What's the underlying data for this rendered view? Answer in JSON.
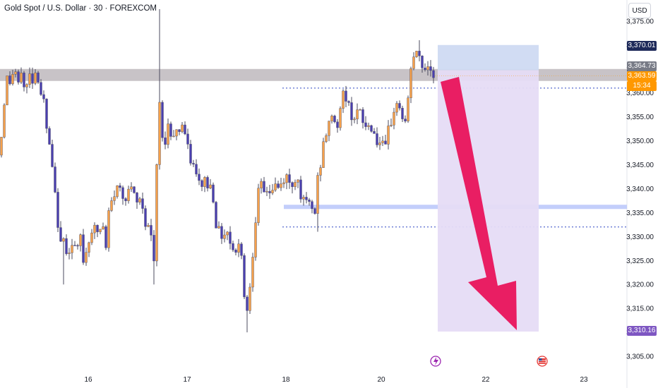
{
  "header": {
    "symbol_title": "Gold Spot / U.S. Dollar · 30 · FOREXCOM",
    "currency": "USD"
  },
  "chart_data": {
    "type": "candlestick",
    "title": "Gold Spot / U.S. Dollar · 30 · FOREXCOM",
    "ylim": [
      3303,
      3378
    ],
    "y_ticks": [
      "3,305.00",
      "3,310.00",
      "3,315.00",
      "3,320.00",
      "3,325.00",
      "3,330.00",
      "3,335.00",
      "3,340.00",
      "3,345.00",
      "3,350.00",
      "3,355.00",
      "3,360.00",
      "3,365.00",
      "3,370.00",
      "3,375.00"
    ],
    "x_ticks": [
      "16",
      "17",
      "18",
      "20",
      "22",
      "23"
    ],
    "price_labels": {
      "target_high": "3,370.01",
      "resistance": "3,364.73",
      "last_price": "3,363.59",
      "countdown": "15:34",
      "target_low": "3,310.16"
    },
    "levels": {
      "resistance_zone": [
        3362.5,
        3365.0
      ],
      "support_line": 3336.2,
      "dotted_upper": 3361.0,
      "dotted_lower": 3332.0
    },
    "short_position": {
      "entry": 3364.73,
      "stop": 3370.01,
      "target": 3310.16
    },
    "candle_anchors": [
      [
        0,
        3347
      ],
      [
        5,
        3357
      ],
      [
        10,
        3363
      ],
      [
        16,
        3362
      ],
      [
        20,
        3366
      ],
      [
        26,
        3361
      ],
      [
        30,
        3365
      ],
      [
        36,
        3359
      ],
      [
        40,
        3364
      ],
      [
        46,
        3363
      ],
      [
        52,
        3365
      ],
      [
        58,
        3360
      ],
      [
        62,
        3358
      ],
      [
        66,
        3352
      ],
      [
        70,
        3349
      ],
      [
        76,
        3341
      ],
      [
        82,
        3333
      ],
      [
        86,
        3328
      ],
      [
        90,
        3329
      ],
      [
        96,
        3327
      ],
      [
        100,
        3328
      ],
      [
        104,
        3328
      ],
      [
        110,
        3327
      ],
      [
        114,
        3330
      ],
      [
        118,
        3325
      ],
      [
        124,
        3328
      ],
      [
        128,
        3331
      ],
      [
        132,
        3332
      ],
      [
        136,
        3331
      ],
      [
        140,
        3331
      ],
      [
        146,
        3332
      ],
      [
        150,
        3327
      ],
      [
        154,
        3335
      ],
      [
        160,
        3338
      ],
      [
        164,
        3340
      ],
      [
        170,
        3340
      ],
      [
        176,
        3338
      ],
      [
        182,
        3340
      ],
      [
        188,
        3339
      ],
      [
        194,
        3337
      ],
      [
        200,
        3338
      ],
      [
        206,
        3333
      ],
      [
        212,
        3332
      ],
      [
        216,
        3327
      ],
      [
        218,
        3325
      ],
      [
        220,
        3326
      ],
      [
        222,
        3344
      ],
      [
        224,
        3363
      ],
      [
        228,
        3353
      ],
      [
        232,
        3347
      ],
      [
        236,
        3354
      ],
      [
        240,
        3352
      ],
      [
        244,
        3351
      ],
      [
        248,
        3353
      ],
      [
        252,
        3351
      ],
      [
        256,
        3354
      ],
      [
        260,
        3353
      ],
      [
        266,
        3348
      ],
      [
        270,
        3346
      ],
      [
        276,
        3344
      ],
      [
        280,
        3341
      ],
      [
        286,
        3341
      ],
      [
        290,
        3342
      ],
      [
        296,
        3340
      ],
      [
        300,
        3341
      ],
      [
        306,
        3333
      ],
      [
        310,
        3331
      ],
      [
        316,
        3330
      ],
      [
        320,
        3332
      ],
      [
        326,
        3329
      ],
      [
        330,
        3328
      ],
      [
        336,
        3326
      ],
      [
        340,
        3330
      ],
      [
        344,
        3324
      ],
      [
        348,
        3312
      ],
      [
        352,
        3317
      ],
      [
        356,
        3323
      ],
      [
        360,
        3331
      ],
      [
        364,
        3337
      ],
      [
        368,
        3341
      ],
      [
        374,
        3339
      ],
      [
        378,
        3340
      ],
      [
        384,
        3339
      ],
      [
        388,
        3341
      ],
      [
        394,
        3340
      ],
      [
        400,
        3341
      ],
      [
        404,
        3343
      ],
      [
        410,
        3341
      ],
      [
        414,
        3341
      ],
      [
        420,
        3343
      ],
      [
        426,
        3339
      ],
      [
        430,
        3337
      ],
      [
        436,
        3337
      ],
      [
        440,
        3336
      ],
      [
        446,
        3335
      ],
      [
        450,
        3342
      ],
      [
        456,
        3347
      ],
      [
        460,
        3351
      ],
      [
        466,
        3353
      ],
      [
        470,
        3356
      ],
      [
        476,
        3353
      ],
      [
        480,
        3354
      ],
      [
        486,
        3360
      ],
      [
        490,
        3359
      ],
      [
        496,
        3356
      ],
      [
        500,
        3355
      ],
      [
        506,
        3356
      ],
      [
        512,
        3355
      ],
      [
        516,
        3353
      ],
      [
        522,
        3353
      ],
      [
        528,
        3353
      ],
      [
        532,
        3350
      ],
      [
        536,
        3350
      ],
      [
        540,
        3349
      ],
      [
        546,
        3348
      ],
      [
        550,
        3352
      ],
      [
        556,
        3355
      ],
      [
        560,
        3358
      ],
      [
        566,
        3357
      ],
      [
        570,
        3355
      ],
      [
        576,
        3353
      ],
      [
        580,
        3363
      ],
      [
        584,
        3368
      ],
      [
        588,
        3367
      ],
      [
        592,
        3369
      ],
      [
        596,
        3366
      ],
      [
        602,
        3365
      ],
      [
        606,
        3366
      ],
      [
        610,
        3365
      ],
      [
        616,
        3364
      ]
    ]
  },
  "colors": {
    "up": "#f7a14a",
    "down": "#4a3fb0",
    "wick": "#4b4b5f",
    "resistance_zone": "#c5c0c4",
    "support_line": "#bcc9fb",
    "dotted_line": "#2f46c4",
    "stop_zone": "#cfdaf2",
    "target_zone": "#e6dcf6",
    "arrow": "#e91e63",
    "last_price_tag": "#ff9800",
    "resistance_tag": "#787b86",
    "target_high_tag": "#1e2a5a",
    "target_low_tag": "#7e57c2"
  },
  "icons": [
    "lightning-event-icon",
    "us-flag-event-icon"
  ]
}
